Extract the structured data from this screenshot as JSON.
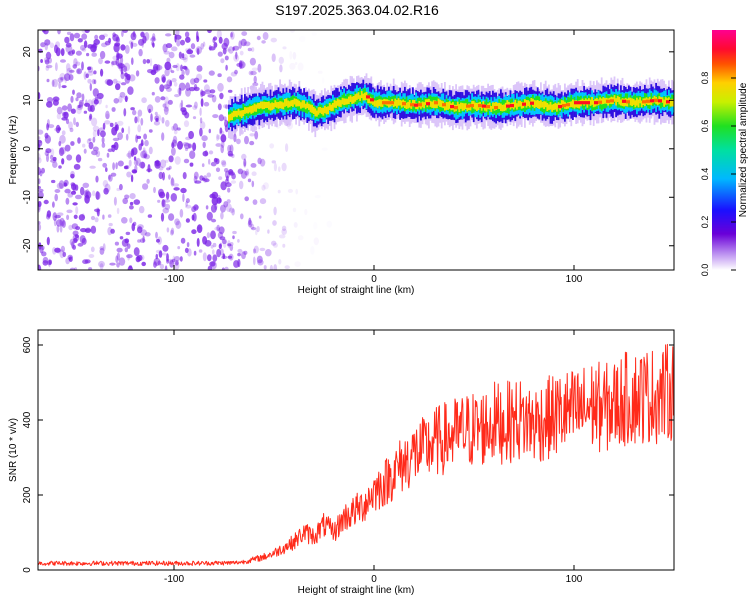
{
  "title": "S197.2025.363.04.02.R16",
  "colors": {
    "snr_line": "#ff2a1a",
    "scatter_dots": "#7a22e6",
    "axis": "#000000",
    "background": "#ffffff"
  },
  "chart_data": [
    {
      "type": "heatmap",
      "xlabel": "Height of straight line (km)",
      "ylabel": "Frequency (Hz)",
      "xlim": [
        -168,
        150
      ],
      "ylim": [
        -25,
        24.5
      ],
      "xticks": [
        -100,
        0,
        100
      ],
      "yticks": [
        -20,
        -10,
        0,
        10,
        20
      ],
      "colorbar": {
        "label": "Normalized spectral amplitude",
        "range": [
          0,
          1
        ],
        "ticks": [
          0.0,
          0.2,
          0.4,
          0.6,
          0.8
        ],
        "colormap": "rainbow (white-purple-blue-cyan-green-yellow-red-magenta)"
      },
      "description_series": {
        "name": "dominant frequency ridge",
        "x": [
          -73,
          -70,
          -60,
          -50,
          -40,
          -35,
          -30,
          -25,
          -20,
          -15,
          -10,
          -5,
          0,
          10,
          20,
          30,
          40,
          50,
          60,
          70,
          80,
          90,
          100,
          110,
          120,
          130,
          140,
          150
        ],
        "y": [
          6.5,
          7,
          8.5,
          9,
          9.5,
          9,
          7.5,
          8,
          9,
          10,
          10.5,
          11,
          9.5,
          9.5,
          9,
          9.5,
          8.5,
          9,
          8.5,
          9,
          9.5,
          8.5,
          9.5,
          9.5,
          10,
          9.5,
          10,
          9.5
        ]
      },
      "noise_region_x": [
        -168,
        -60
      ]
    },
    {
      "type": "line",
      "xlabel": "Height of straight line (km)",
      "ylabel": "SNR (10 * v/v)",
      "xlim": [
        -168,
        150
      ],
      "ylim": [
        0,
        640
      ],
      "xticks": [
        -100,
        0,
        100
      ],
      "yticks": [
        0,
        200,
        400,
        600
      ],
      "series": [
        {
          "x": [
            -168,
            -150,
            -130,
            -110,
            -90,
            -70,
            -65,
            -60,
            -55,
            -50,
            -45,
            -40,
            -35,
            -30,
            -25,
            -20,
            -15,
            -10,
            -5,
            0,
            5,
            10,
            15,
            20,
            25,
            30,
            35,
            40,
            45,
            50,
            55,
            60,
            65,
            70,
            75,
            80,
            85,
            90,
            95,
            100,
            105,
            110,
            115,
            120,
            125,
            130,
            135,
            140,
            145,
            150
          ],
          "values": [
            18,
            18,
            18,
            18,
            18,
            19,
            22,
            28,
            35,
            45,
            60,
            75,
            100,
            90,
            120,
            100,
            140,
            155,
            175,
            210,
            230,
            260,
            285,
            310,
            320,
            340,
            350,
            360,
            370,
            375,
            380,
            395,
            390,
            400,
            400,
            390,
            400,
            410,
            420,
            420,
            430,
            440,
            430,
            440,
            455,
            460,
            465,
            465,
            470,
            480
          ]
        }
      ]
    }
  ]
}
